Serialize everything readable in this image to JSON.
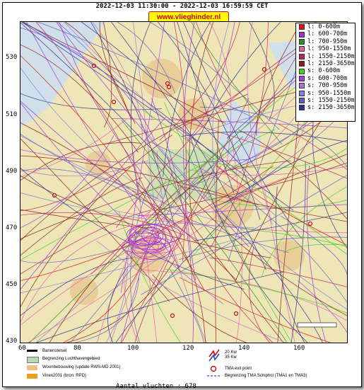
{
  "header": {
    "title": "2022-12-03 11:30:00 - 2022-12-03 16:59:59 CET",
    "brand": "www.vlieghinder.nl"
  },
  "axes": {
    "y_ticks": [
      "530",
      "510",
      "490",
      "470",
      "450",
      "430"
    ],
    "x_ticks": [
      "60",
      "80",
      "100",
      "120",
      "140",
      "160"
    ]
  },
  "legend": {
    "items": [
      {
        "label": "l: 0-600m",
        "color": "#e01010"
      },
      {
        "label": "l: 600-700m",
        "color": "#9b2fd8"
      },
      {
        "label": "l: 700-950m",
        "color": "#2e8b22"
      },
      {
        "label": "l: 950-1550m",
        "color": "#e060b0"
      },
      {
        "label": "l: 1550-2150m",
        "color": "#c02060"
      },
      {
        "label": "l: 2150-3650m",
        "color": "#8b1a1a"
      },
      {
        "label": "s: 0-600m",
        "color": "#40d020"
      },
      {
        "label": "s: 600-700m",
        "color": "#a040e0"
      },
      {
        "label": "s: 700-950m",
        "color": "#b070d0"
      },
      {
        "label": "s: 950-1550m",
        "color": "#8080e0"
      },
      {
        "label": "s: 1550-2150m",
        "color": "#6060c0"
      },
      {
        "label": "s: 2150-3650m",
        "color": "#303090"
      }
    ]
  },
  "bottom_legend": {
    "banenstelsel": "Banenstelsel",
    "luchthaven": "Begrenzing Luchthavengebied",
    "woonbebouwing": "Woonbebouwing (update RWS-MD 2001)",
    "vinex": "Vinex2001 (bron: RPD)",
    "wind_20": "20 Kw",
    "wind_35": "35 Kw",
    "tma_exit": "TMA exit point",
    "tma_schiphol": "Begrenzing TMA Schiphol  (TMA1 en TMA3)",
    "colors": {
      "runway": "#000000",
      "airport": "#b8d8b0",
      "housing": "#f0c080",
      "vinex": "#e8a020"
    }
  },
  "footer": {
    "count": "Aantal vluchten : 678"
  },
  "map": {
    "land_color": "#efe6b8",
    "water_color": "#cfe0ea",
    "urban_color": "#e8c890",
    "green_color": "#bfe0b0",
    "exit_point_color": "#c01010"
  }
}
